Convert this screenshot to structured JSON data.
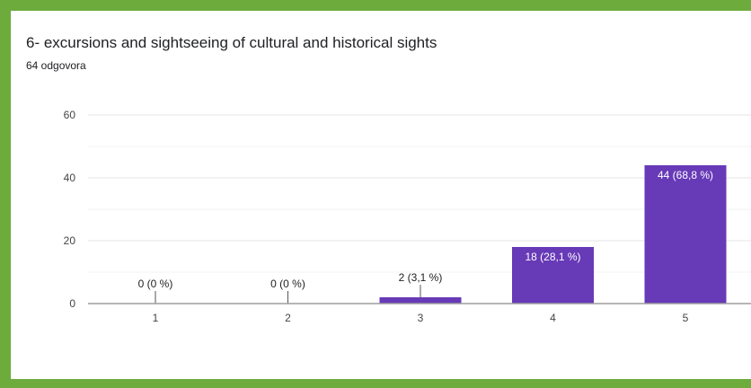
{
  "header": {
    "title": "6- excursions and sightseeing of cultural and historical sights",
    "responses": "64 odgovora"
  },
  "colors": {
    "frame": "#6cab3c",
    "bar": "#673ab7"
  },
  "chart_data": {
    "type": "bar",
    "title": "6- excursions and sightseeing of cultural and historical sights",
    "xlabel": "",
    "ylabel": "",
    "categories": [
      "1",
      "2",
      "3",
      "4",
      "5"
    ],
    "values": [
      0,
      0,
      2,
      18,
      44
    ],
    "data_labels": [
      "0 (0 %)",
      "0 (0 %)",
      "2 (3,1 %)",
      "18 (28,1 %)",
      "44 (68,8 %)"
    ],
    "ylim": [
      0,
      60
    ],
    "yticks": [
      0,
      20,
      40,
      60
    ],
    "grid": true,
    "legend": "none"
  }
}
